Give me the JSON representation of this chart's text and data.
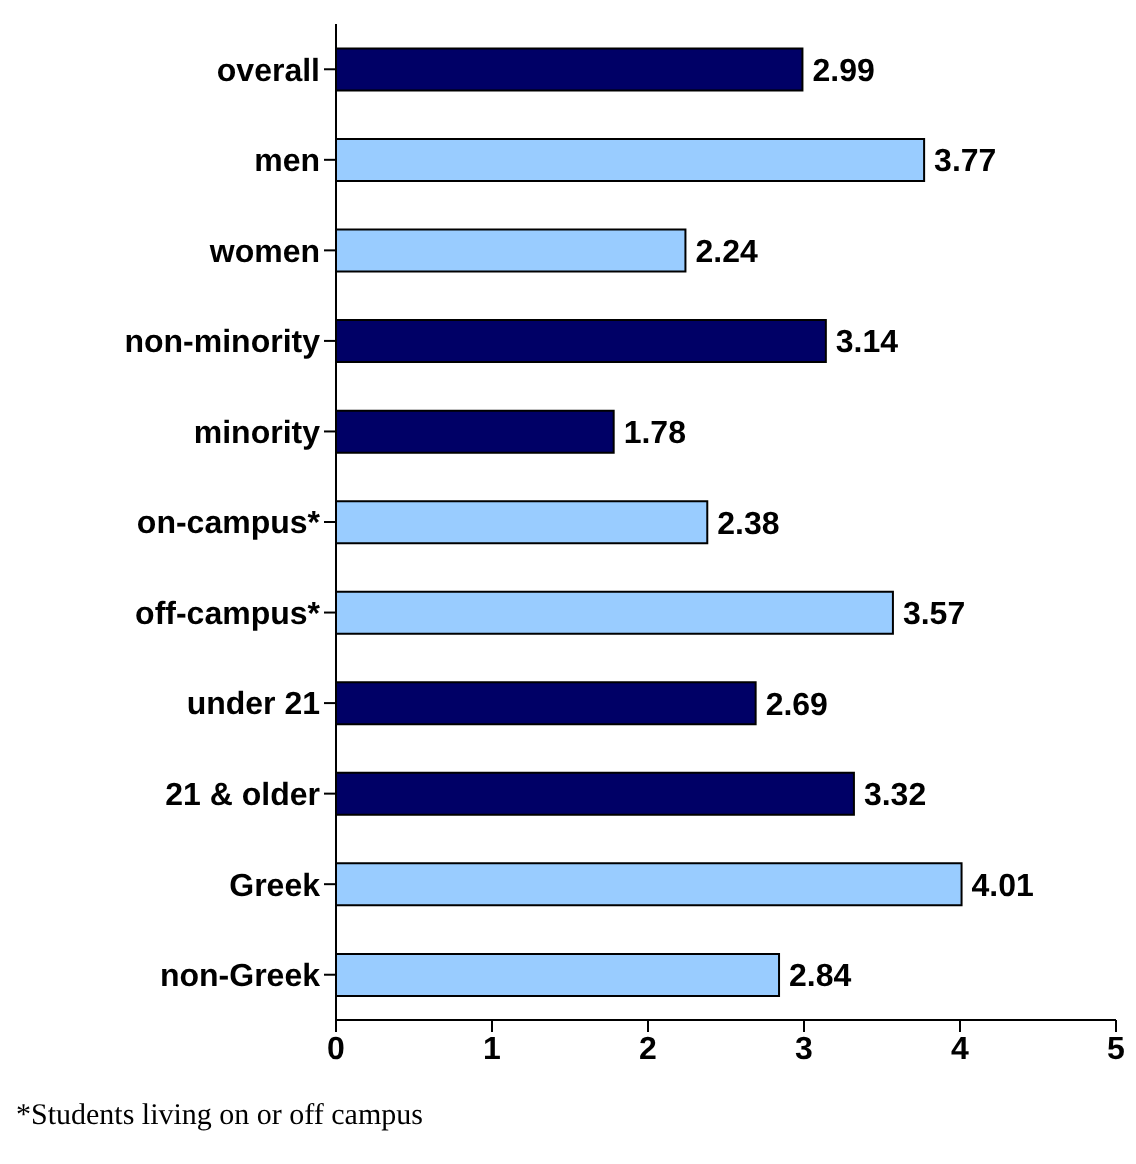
{
  "chart_data": {
    "type": "bar",
    "orientation": "horizontal",
    "categories": [
      "overall",
      "men",
      "women",
      "non-minority",
      "minority",
      "on-campus*",
      "off-campus*",
      "under 21",
      "21 & older",
      "Greek",
      "non-Greek"
    ],
    "values": [
      2.99,
      3.77,
      2.24,
      3.14,
      1.78,
      2.38,
      3.57,
      2.69,
      3.32,
      4.01,
      2.84
    ],
    "colors": [
      "#000066",
      "#99ccff",
      "#99ccff",
      "#000066",
      "#000066",
      "#99ccff",
      "#99ccff",
      "#000066",
      "#000066",
      "#99ccff",
      "#99ccff"
    ],
    "xlim": [
      0,
      5
    ],
    "xticks": [
      0,
      1,
      2,
      3,
      4,
      5
    ],
    "data_labels": true,
    "grid": false,
    "legend": false,
    "annotations": [
      "*Students living on or off campus"
    ]
  }
}
